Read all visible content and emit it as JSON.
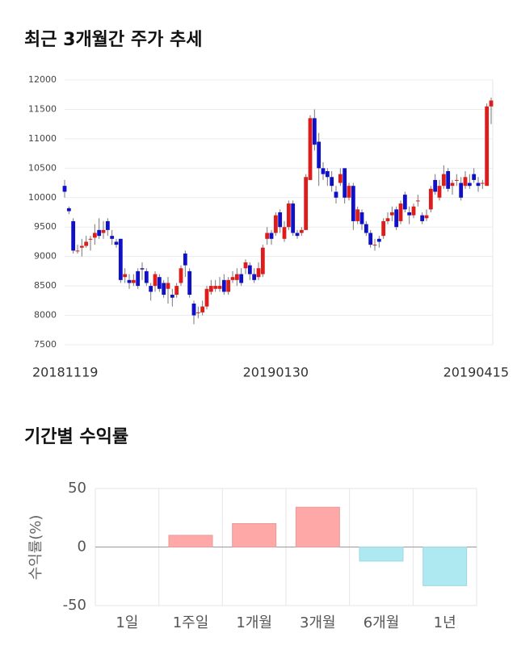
{
  "chart_data": [
    {
      "type": "candlestick",
      "title": "최근 3개월간 주가 추세",
      "categories": [
        "20181119",
        null,
        null,
        null,
        null,
        null,
        null,
        null,
        null,
        null,
        null,
        null,
        null,
        null,
        null,
        null,
        null,
        null,
        null,
        null,
        null,
        null,
        null,
        null,
        null,
        null,
        null,
        null,
        null,
        null,
        null,
        null,
        null,
        null,
        null,
        null,
        null,
        null,
        null,
        null,
        null,
        null,
        null,
        null,
        null,
        null,
        null,
        null,
        null,
        "20190130",
        null,
        null,
        null,
        null,
        null,
        null,
        null,
        null,
        null,
        null,
        null,
        null,
        null,
        null,
        null,
        null,
        null,
        null,
        null,
        null,
        null,
        null,
        null,
        null,
        null,
        null,
        null,
        null,
        null,
        null,
        null,
        null,
        null,
        null,
        null,
        null,
        null,
        null,
        null,
        null,
        null,
        null,
        null,
        null,
        null,
        null,
        null,
        null,
        null,
        "20190415"
      ],
      "open": [
        10200,
        9820,
        9600,
        9100,
        9150,
        9180,
        9300,
        9320,
        9450,
        9400,
        9600,
        9350,
        9250,
        9300,
        8650,
        8600,
        8550,
        8750,
        8800,
        8750,
        8500,
        8500,
        8650,
        8550,
        8450,
        8350,
        8350,
        8550,
        9050,
        8750,
        8200,
        8050,
        8050,
        8150,
        8400,
        8450,
        8450,
        8600,
        8400,
        8600,
        8600,
        8700,
        8800,
        8850,
        8700,
        8650,
        8700,
        9300,
        9400,
        9400,
        9750,
        9300,
        9500,
        9900,
        9400,
        9400,
        9450,
        10300,
        11350,
        10950,
        10500,
        10450,
        10350,
        10100,
        10250,
        10500,
        10000,
        10200,
        9600,
        9750,
        9550,
        9400,
        9200,
        9300,
        9350,
        9600,
        9700,
        9800,
        9600,
        10050,
        9750,
        9700,
        9950,
        9700,
        9650,
        9800,
        10300,
        10000,
        10200,
        10450,
        10200,
        10300,
        10250,
        10200,
        10250,
        10400,
        10250,
        10250,
        10200,
        11550
      ],
      "high": [
        10300,
        9850,
        9650,
        9200,
        9300,
        9350,
        9350,
        9550,
        9650,
        9600,
        9650,
        9450,
        9300,
        9300,
        8800,
        8700,
        8700,
        8800,
        8900,
        8800,
        8550,
        8750,
        8700,
        8600,
        8650,
        8450,
        8550,
        8850,
        9100,
        8800,
        8250,
        8150,
        8250,
        8500,
        8600,
        8600,
        8650,
        8700,
        8650,
        8750,
        8800,
        8800,
        8950,
        8900,
        8800,
        8900,
        9200,
        9500,
        9450,
        9750,
        9800,
        9600,
        9950,
        9950,
        9450,
        9500,
        10400,
        11400,
        11500,
        11100,
        10600,
        10500,
        10450,
        10200,
        10500,
        10500,
        10250,
        10250,
        9850,
        9800,
        9600,
        9450,
        9300,
        9350,
        9650,
        9750,
        9850,
        9850,
        9950,
        10100,
        9850,
        9900,
        10050,
        9750,
        9800,
        10200,
        10400,
        10300,
        10550,
        10500,
        10300,
        10400,
        10350,
        10450,
        10400,
        10500,
        10350,
        10300,
        11600,
        11700
      ],
      "low": [
        10000,
        9720,
        9050,
        9050,
        9000,
        9150,
        9100,
        9200,
        9300,
        9300,
        9350,
        9200,
        9150,
        8550,
        8550,
        8450,
        8500,
        8450,
        8600,
        8500,
        8250,
        8400,
        8400,
        8300,
        8200,
        8150,
        8300,
        8500,
        8650,
        8300,
        7850,
        7950,
        8000,
        8100,
        8350,
        8400,
        8400,
        8350,
        8350,
        8550,
        8500,
        8500,
        8700,
        8600,
        8550,
        8600,
        8650,
        9200,
        9200,
        9350,
        9400,
        9250,
        9450,
        9350,
        9300,
        9350,
        9450,
        10300,
        10800,
        10200,
        10300,
        10200,
        10100,
        9900,
        10200,
        9900,
        9950,
        9450,
        9550,
        9450,
        9350,
        9150,
        9100,
        9150,
        9300,
        9550,
        9600,
        9450,
        9550,
        9750,
        9550,
        9650,
        9850,
        9550,
        9600,
        9750,
        10050,
        9950,
        10150,
        10100,
        10050,
        10200,
        9950,
        10150,
        10150,
        10250,
        10100,
        10150,
        10200,
        11250
      ],
      "close": [
        10100,
        9770,
        9100,
        9100,
        9180,
        9250,
        9300,
        9400,
        9350,
        9450,
        9450,
        9300,
        9200,
        8600,
        8700,
        8550,
        8600,
        8500,
        8780,
        8550,
        8400,
        8700,
        8450,
        8350,
        8550,
        8300,
        8500,
        8800,
        8850,
        8350,
        8000,
        8050,
        8150,
        8450,
        8500,
        8500,
        8500,
        8400,
        8600,
        8650,
        8700,
        8550,
        8900,
        8700,
        8600,
        8800,
        9150,
        9400,
        9300,
        9700,
        9500,
        9500,
        9900,
        9400,
        9350,
        9450,
        10350,
        11350,
        10900,
        10500,
        10400,
        10350,
        10200,
        10000,
        10400,
        10000,
        10200,
        9600,
        9800,
        9550,
        9400,
        9200,
        9200,
        9250,
        9600,
        9650,
        9750,
        9500,
        9900,
        9800,
        9700,
        9850,
        9950,
        9600,
        9700,
        10150,
        10100,
        10200,
        10400,
        10150,
        10250,
        10300,
        10000,
        10350,
        10200,
        10300,
        10200,
        10250,
        11550,
        11650
      ],
      "up_color": "#dd1c1c",
      "down_color": "#1010c8",
      "ylim": [
        7500,
        12000
      ],
      "yticks": [
        7500,
        8000,
        8500,
        9000,
        9500,
        10000,
        10500,
        11000,
        11500,
        12000
      ],
      "grid": true
    },
    {
      "type": "bar",
      "title": "기간별 수익률",
      "y_label": "수익률(%)",
      "categories": [
        "1일",
        "1주일",
        "1개월",
        "3개월",
        "6개월",
        "1년"
      ],
      "values": [
        0,
        10,
        20,
        34,
        -12,
        -33
      ],
      "positive_color": "#ffa8a8",
      "negative_color": "#aee9f2",
      "ylim": [
        -50,
        50
      ],
      "yticks": [
        -50,
        0,
        50
      ],
      "grid": true
    }
  ]
}
